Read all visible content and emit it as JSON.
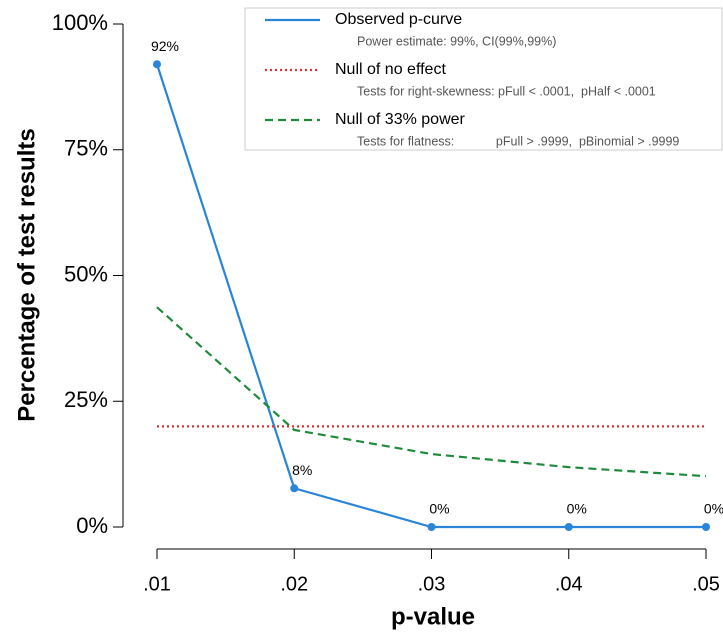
{
  "chart_data": {
    "type": "line",
    "x_label": "p-value",
    "y_label": "Percentage of test results",
    "x": [
      {
        "value": 0.01,
        "label": ".01"
      },
      {
        "value": 0.02,
        "label": ".02"
      },
      {
        "value": 0.03,
        "label": ".03"
      },
      {
        "value": 0.04,
        "label": ".04"
      },
      {
        "value": 0.05,
        "label": ".05"
      }
    ],
    "xlim": [
      0.01,
      0.05
    ],
    "xticks": [
      {
        "value": 0.01,
        "label": ".01"
      },
      {
        "value": 0.02,
        "label": ".02"
      },
      {
        "value": 0.03,
        "label": ".03"
      },
      {
        "value": 0.04,
        "label": ".04"
      },
      {
        "value": 0.05,
        "label": ".05"
      }
    ],
    "ylim": [
      0,
      100
    ],
    "yticks": [
      {
        "value": 0,
        "label": "0%"
      },
      {
        "value": 25,
        "label": "25%"
      },
      {
        "value": 50,
        "label": "50%"
      },
      {
        "value": 75,
        "label": "75%"
      },
      {
        "value": 100,
        "label": "100%"
      }
    ],
    "legend": "upper right",
    "series": [
      {
        "name": "Observed p-curve",
        "note": "Power estimate: 99%, CI(99%,99%)",
        "color": "#2a85d8",
        "line_style": "solid",
        "markers": true,
        "values": [
          92,
          7.7,
          0,
          0,
          0
        ],
        "value_labels": [
          "92%",
          "8%",
          "0%",
          "0%",
          "0%"
        ]
      },
      {
        "name": "Null of no effect",
        "note": "Tests for right-skewness: pFull < .0001,  pHalf < .0001",
        "color": "#e03030",
        "line_style": "dotted",
        "markers": false,
        "values": [
          20,
          20,
          20,
          20,
          20
        ]
      },
      {
        "name": "Null of 33% power",
        "note": "Tests for flatness:            pFull > .9999,  pBinomial > .9999",
        "color": "#1e8a3c",
        "line_style": "dashed",
        "markers": false,
        "values": [
          43.7,
          19.3,
          14.5,
          11.9,
          10.1
        ]
      }
    ]
  }
}
